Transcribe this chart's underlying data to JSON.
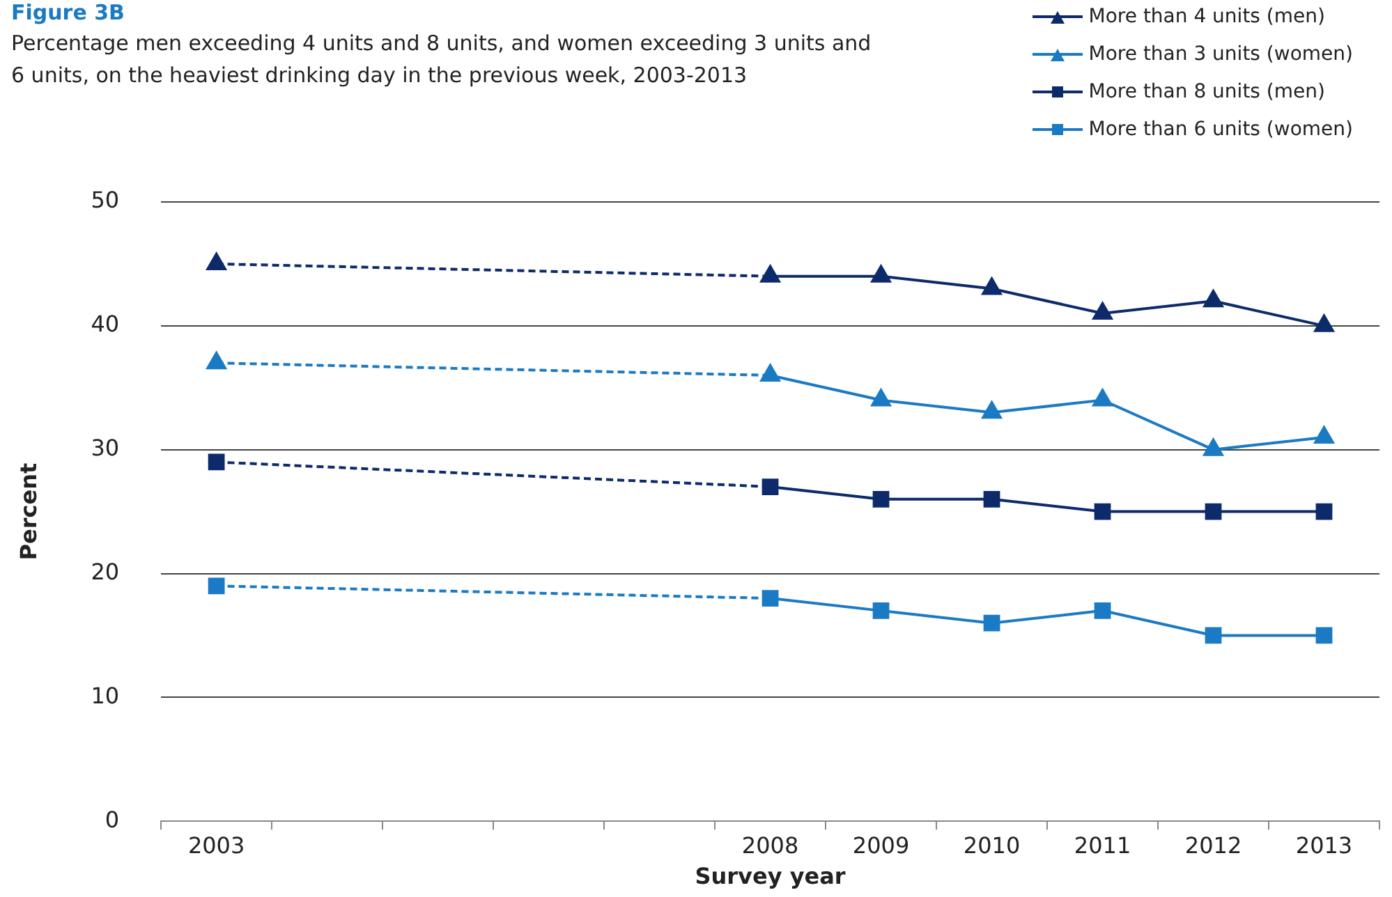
{
  "chart_data": {
    "type": "line",
    "title": "Figure 3B",
    "subtitle": "Percentage men exceeding 4 units and 8 units, and women exceeding 3 units and 6 units, on the heaviest drinking day in the previous week, 2003-2013",
    "xlabel": "Survey year",
    "ylabel": "Percent",
    "categories": [
      "2003",
      null,
      null,
      null,
      null,
      "2008",
      "2009",
      "2010",
      "2011",
      "2012",
      "2013"
    ],
    "series": [
      {
        "name": "More than 4 units (men)",
        "color": "#0d2b6b",
        "marker": "triangle",
        "values": [
          45,
          null,
          null,
          null,
          null,
          44,
          44,
          43,
          41,
          42,
          40
        ]
      },
      {
        "name": "More than 3 units (women)",
        "color": "#1a7ac4",
        "marker": "triangle",
        "values": [
          37,
          null,
          null,
          null,
          null,
          36,
          34,
          33,
          34,
          30,
          31
        ]
      },
      {
        "name": "More than 8 units (men)",
        "color": "#0d2b6b",
        "marker": "square",
        "values": [
          29,
          null,
          null,
          null,
          null,
          27,
          26,
          26,
          25,
          25,
          25
        ]
      },
      {
        "name": "More than 6 units (women)",
        "color": "#1a7ac4",
        "marker": "square",
        "values": [
          19,
          null,
          null,
          null,
          null,
          18,
          17,
          16,
          17,
          15,
          15
        ]
      }
    ],
    "ylim": [
      0,
      50
    ],
    "yticks": [
      0,
      10,
      20,
      30,
      40,
      50
    ],
    "grid": "y",
    "legend": "top right"
  }
}
